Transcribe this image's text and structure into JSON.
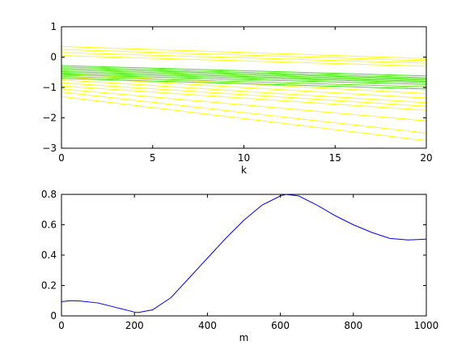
{
  "chart_data": [
    {
      "type": "line",
      "xlabel": "k",
      "ylabel": "",
      "xlim": [
        0,
        20
      ],
      "ylim": [
        -3,
        1
      ],
      "xticks": [
        0,
        5,
        10,
        15,
        20
      ],
      "yticks": [
        1,
        0,
        -1,
        -2,
        -3
      ],
      "xtick_labels": [
        "0",
        "5",
        "10",
        "15",
        "20"
      ],
      "ytick_labels": [
        "1",
        "0",
        "−1",
        "−2",
        "−3"
      ],
      "grid": false,
      "x": [
        0,
        20
      ],
      "series": [
        {
          "color": "#ffff00",
          "values": [
            0.35,
            -0.05
          ]
        },
        {
          "color": "#ffff00",
          "values": [
            0.25,
            -0.12
          ]
        },
        {
          "color": "#ffff00",
          "values": [
            0.15,
            -0.2
          ]
        },
        {
          "color": "#ffff00",
          "values": [
            0.05,
            -0.3
          ]
        },
        {
          "color": "#ffff00",
          "values": [
            -0.55,
            -1.2
          ]
        },
        {
          "color": "#ffff00",
          "values": [
            -0.65,
            -1.35
          ]
        },
        {
          "color": "#ffff00",
          "values": [
            -0.75,
            -1.5
          ]
        },
        {
          "color": "#ffff00",
          "values": [
            -0.85,
            -1.62
          ]
        },
        {
          "color": "#ffff00",
          "values": [
            -0.95,
            -1.75
          ]
        },
        {
          "color": "#ffff00",
          "values": [
            -1.05,
            -2.1
          ]
        },
        {
          "color": "#ffff00",
          "values": [
            -1.15,
            -2.5
          ]
        },
        {
          "color": "#ffff00",
          "values": [
            -1.3,
            -2.75
          ]
        },
        {
          "color": "#33ee00",
          "values": [
            -0.28,
            -0.62
          ]
        },
        {
          "color": "#44ee00",
          "values": [
            -0.33,
            -0.68
          ]
        },
        {
          "color": "#33ee00",
          "values": [
            -0.38,
            -0.72
          ]
        },
        {
          "color": "#55ee00",
          "values": [
            -0.43,
            -0.76
          ]
        },
        {
          "color": "#33ee00",
          "values": [
            -0.48,
            -0.8
          ]
        },
        {
          "color": "#44ee00",
          "values": [
            -0.53,
            -0.84
          ]
        },
        {
          "color": "#33ee00",
          "values": [
            -0.58,
            -0.9
          ]
        },
        {
          "color": "#55ee00",
          "values": [
            -0.64,
            -0.98
          ]
        },
        {
          "color": "#33ee00",
          "values": [
            -0.7,
            -1.05
          ]
        }
      ]
    },
    {
      "type": "line",
      "xlabel": "m",
      "ylabel": "",
      "xlim": [
        0,
        1000
      ],
      "ylim": [
        0,
        0.8
      ],
      "xticks": [
        0,
        200,
        400,
        600,
        800,
        1000
      ],
      "yticks": [
        0.8,
        0.6,
        0.4,
        0.2,
        0
      ],
      "xtick_labels": [
        "0",
        "200",
        "400",
        "600",
        "800",
        "1000"
      ],
      "ytick_labels": [
        "0.8",
        "0.6",
        "0.4",
        "0.2",
        "0"
      ],
      "grid": false,
      "x": [
        0,
        25,
        50,
        100,
        150,
        200,
        210,
        250,
        300,
        350,
        400,
        450,
        500,
        550,
        600,
        615,
        650,
        700,
        750,
        800,
        850,
        900,
        950,
        1000
      ],
      "series": [
        {
          "color": "#0000ff",
          "values": [
            0.094,
            0.1,
            0.098,
            0.085,
            0.055,
            0.025,
            0.022,
            0.04,
            0.12,
            0.25,
            0.38,
            0.51,
            0.63,
            0.73,
            0.79,
            0.8,
            0.79,
            0.73,
            0.66,
            0.6,
            0.55,
            0.51,
            0.5,
            0.505
          ]
        }
      ]
    }
  ]
}
